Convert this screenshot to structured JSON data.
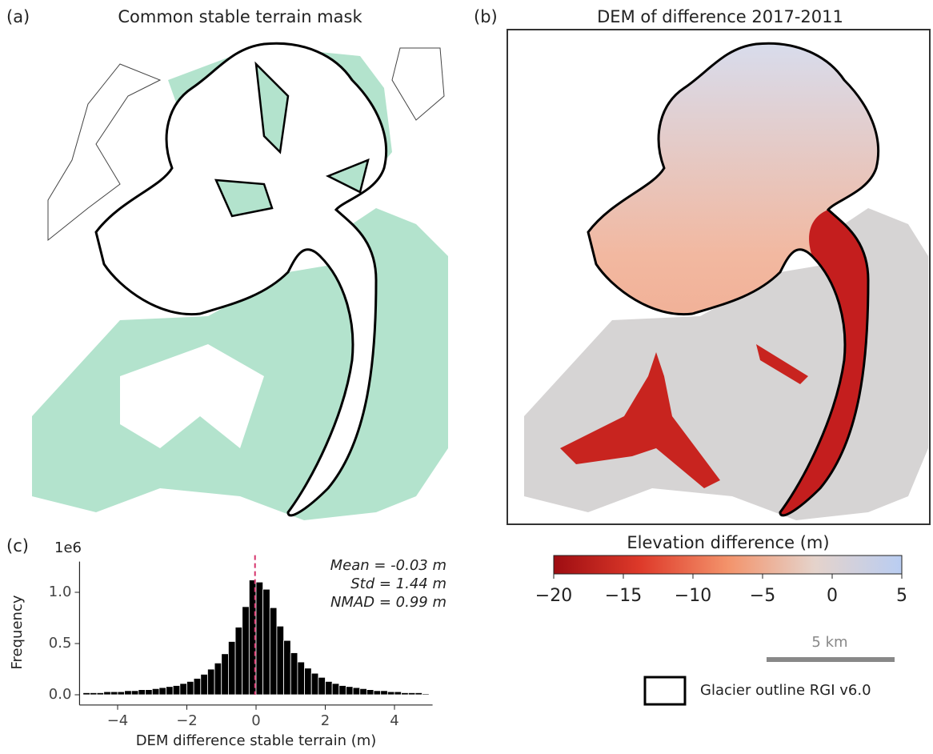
{
  "chart_data": [
    {
      "type": "map",
      "panel_label": "(a)",
      "title": "Common stable terrain mask"
    },
    {
      "type": "map",
      "panel_label": "(b)",
      "title": "DEM of difference 2017-2011",
      "colorbar": {
        "label": "Elevation difference (m)",
        "clim": [
          -20,
          5
        ],
        "ticks": [
          {
            "value": -20,
            "label": "−20"
          },
          {
            "value": -15,
            "label": "−15"
          },
          {
            "value": -10,
            "label": "−10"
          },
          {
            "value": -5,
            "label": "−5"
          },
          0,
          5
        ],
        "colors": [
          "#9e0d12",
          "#de3a2a",
          "#f3936b",
          "#e5d3cb",
          "#b9cdf2"
        ]
      },
      "scale_bar": "5 km",
      "legend": "Glacier outline RGI v6.0"
    },
    {
      "type": "histogram",
      "panel_label": "(c)",
      "xlabel": "DEM difference stable terrain (m)",
      "ylabel": "Frequency",
      "y_offset_label": "1e6",
      "bins": [
        -5,
        -4.8,
        -4.6,
        -4.4,
        -4.2,
        -4,
        -3.8,
        -3.6,
        -3.4,
        -3.2,
        -3,
        -2.8,
        -2.6,
        -2.4,
        -2.2,
        -2,
        -1.8,
        -1.6,
        -1.4,
        -1.2,
        -1,
        -0.8,
        -0.6,
        -0.4,
        -0.2,
        0,
        0.2,
        0.4,
        0.6,
        0.8,
        1,
        1.2,
        1.4,
        1.6,
        1.8,
        2,
        2.2,
        2.4,
        2.6,
        2.8,
        3,
        3.2,
        3.4,
        3.6,
        3.8,
        4,
        4.2,
        4.4,
        4.6,
        4.8,
        5
      ],
      "values": [
        0.02,
        0.02,
        0.02,
        0.03,
        0.03,
        0.03,
        0.04,
        0.04,
        0.05,
        0.05,
        0.06,
        0.07,
        0.08,
        0.09,
        0.11,
        0.13,
        0.16,
        0.2,
        0.25,
        0.31,
        0.4,
        0.52,
        0.66,
        0.86,
        1.12,
        1.1,
        1.03,
        0.85,
        0.67,
        0.53,
        0.41,
        0.32,
        0.26,
        0.21,
        0.17,
        0.13,
        0.11,
        0.09,
        0.08,
        0.07,
        0.06,
        0.05,
        0.04,
        0.04,
        0.03,
        0.03,
        0.02,
        0.02,
        0.02,
        0.01
      ],
      "color": "#000000",
      "mean_line": -0.03,
      "mean_line_color": "#d6336c",
      "annotations": [
        "Mean = -0.03  m",
        "Std = 1.44  m",
        "NMAD = 0.99  m"
      ],
      "xlim": [
        -5.1,
        5.1
      ],
      "xticks": [
        {
          "value": -4,
          "label": "−4"
        },
        {
          "value": -2,
          "label": "−2"
        },
        0,
        2,
        4
      ],
      "ylim": [
        -0.1,
        1.3
      ],
      "yticks": [
        {
          "value": 0,
          "label": "0.0"
        },
        {
          "value": 0.5,
          "label": "0.5"
        },
        {
          "value": 1,
          "label": "1.0"
        }
      ]
    }
  ]
}
